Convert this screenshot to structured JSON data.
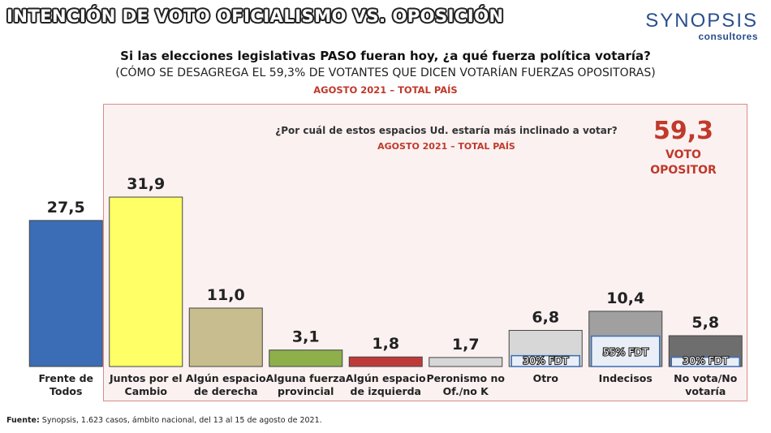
{
  "header": {
    "title": "INTENCIÓN DE VOTO OFICIALISMO VS. OPOSICIÓN",
    "logo_name": "SYNOPSIS",
    "logo_sub": "consultores"
  },
  "question": {
    "main": "Si las elecciones legislativas PASO fueran hoy, ¿a qué fuerza política votaría?",
    "sub": "(CÓMO SE DESAGREGA EL 59,3% DE VOTANTES QUE DICEN VOTARÍAN FUERZAS OPOSITORAS)",
    "period": "AGOSTO 2021 – TOTAL PAÍS"
  },
  "opposition_box": {
    "question": "¿Por cuál de estos espacios Ud. estaría más inclinado a votar?",
    "period": "AGOSTO 2021 – TOTAL PAÍS",
    "value": "59,3",
    "label_line1": "VOTO",
    "label_line2": "OPOSITOR"
  },
  "footer": {
    "label": "Fuente:",
    "text": " Synopsis, 1.623 casos, ámbito nacional, del 13 al 15 de agosto de 2021."
  },
  "chart_data": {
    "type": "bar",
    "categories": [
      [
        "Frente de",
        "Todos"
      ],
      [
        "Juntos por el",
        "Cambio"
      ],
      [
        "Algún espacio",
        "de derecha"
      ],
      [
        "Alguna fuerza",
        "provincial"
      ],
      [
        "Algún espacio",
        "de izquierda"
      ],
      [
        "Peronismo no",
        "Of./no K"
      ],
      [
        "Otro"
      ],
      [
        "Indecisos"
      ],
      [
        "No vota/No",
        "votaría"
      ]
    ],
    "values": [
      27.5,
      31.9,
      11.0,
      3.1,
      1.8,
      1.7,
      6.8,
      10.4,
      5.8
    ],
    "value_labels": [
      "27,5",
      "31,9",
      "11,0",
      "3,1",
      "1,8",
      "1,7",
      "6,8",
      "10,4",
      "5,8"
    ],
    "colors": [
      "#3a6db5",
      "#ffff66",
      "#c8bd8e",
      "#8db04a",
      "#c0393a",
      "#d7d7d7",
      "#d7d7d7",
      "#a0a0a0",
      "#6e6e6e"
    ],
    "fdt_overlays": [
      {
        "index": 6,
        "label": "30% FDT",
        "share": 0.3
      },
      {
        "index": 7,
        "label": "55% FDT",
        "share": 0.55
      },
      {
        "index": 8,
        "label": "30% FDT",
        "share": 0.3
      }
    ],
    "ylim": [
      0,
      35
    ]
  }
}
